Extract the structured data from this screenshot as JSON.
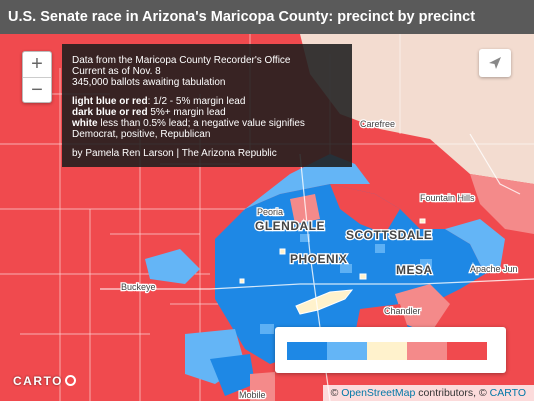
{
  "title": "U.S. Senate race in Arizona's Maricopa County: precinct by precinct",
  "controls": {
    "zoom_in": "+",
    "zoom_out": "−"
  },
  "info_box": {
    "line1": "Data from the Maricopa County Recorder's Office",
    "line2": "Current as of Nov. 8",
    "line3": "345,000 ballots awaiting tabulation",
    "key1_bold": "light blue or red",
    "key1_rest": ": 1/2 - 5% margin lead",
    "key2_bold": "dark blue or red",
    "key2_rest": " 5%+ margin lead",
    "key3_bold": "white",
    "key3_rest": " less than 0.5% lead; a negative value signifies",
    "key3_line2": "Democrat, positive, Republican",
    "credit": "by Pamela Ren Larson | The Arizona Republic"
  },
  "map_labels": {
    "carefree": "Carefree",
    "fountain_hills": "Fountain Hills",
    "peoria": "Peoria",
    "glendale": "GLENDALE",
    "scottsdale": "SCOTTSDALE",
    "phoenix": "PHOENIX",
    "mesa": "MESA",
    "apache_junction": "Apache Jun",
    "buckeye": "Buckeye",
    "chandler": "Chandler",
    "mobile": "Mobile"
  },
  "legend": {
    "colors": [
      "#1e88e5",
      "#64b5f6",
      "#fff2cc",
      "#f48a8a",
      "#f04a4e"
    ]
  },
  "colors": {
    "republican_strong": "#f04a4e",
    "republican_light": "#f48a8a",
    "democrat_strong": "#1e88e5",
    "democrat_light": "#64b5f6",
    "tossup": "#fff2cc"
  },
  "branding": {
    "carto": "CARTO"
  },
  "attribution": {
    "prefix": "© ",
    "osm": "OpenStreetMap",
    "middle": " contributors, © ",
    "carto": "CARTO"
  }
}
